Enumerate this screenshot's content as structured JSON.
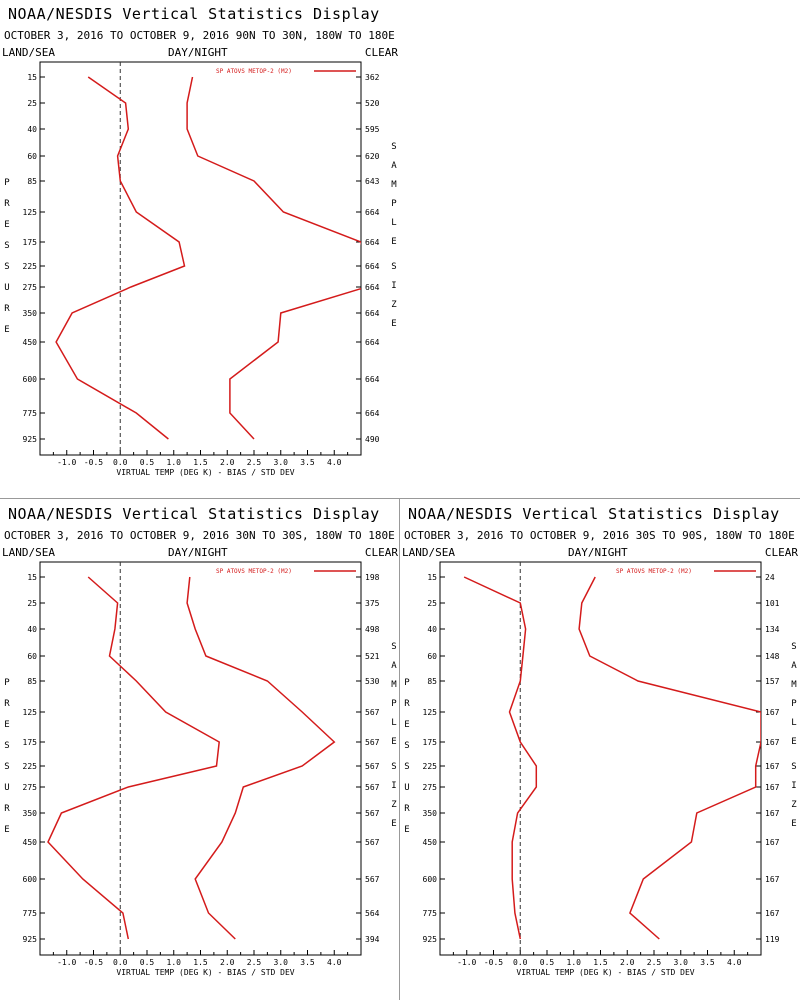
{
  "chart_data": [
    {
      "type": "line",
      "title": "NOAA/NESDIS Vertical Statistics Display",
      "subtitle": "OCTOBER 3, 2016 TO OCTOBER 9, 2016 90N TO 30N, 180W TO 180E",
      "left_label": "LAND/SEA",
      "center_label": "DAY/NIGHT",
      "right_label": "CLEAR",
      "xlabel": "VIRTUAL TEMP (DEG K) - BIAS / STD DEV",
      "ylabel": "PRESSURE",
      "y2label": "SAMPLE SIZE",
      "xlim": [
        -1.5,
        4.5
      ],
      "x_ticks": [
        "-1.0",
        "-0.5",
        "0.0",
        "0.5",
        "1.0",
        "1.5",
        "2.0",
        "2.5",
        "3.0",
        "3.5",
        "4.0"
      ],
      "pressure_levels": [
        "15",
        "25",
        "40",
        "60",
        "85",
        "125",
        "175",
        "225",
        "275",
        "350",
        "450",
        "600",
        "775",
        "925"
      ],
      "sample_size": [
        "362",
        "520",
        "595",
        "620",
        "643",
        "664",
        "664",
        "664",
        "664",
        "664",
        "664",
        "664",
        "664",
        "490"
      ],
      "legend": "SP ATOVS METOP-2 (M2)",
      "series": [
        {
          "name": "BIAS",
          "values": [
            -0.6,
            0.1,
            0.15,
            -0.05,
            0.0,
            0.3,
            1.1,
            1.2,
            0.2,
            -0.9,
            -1.2,
            -0.8,
            0.3,
            0.9
          ]
        },
        {
          "name": "STD DEV",
          "values": [
            1.35,
            1.25,
            1.25,
            1.45,
            2.5,
            3.05,
            4.5,
            4.6,
            4.6,
            3.0,
            2.95,
            2.05,
            2.05,
            2.5
          ]
        }
      ]
    },
    {
      "type": "line",
      "title": "NOAA/NESDIS Vertical Statistics Display",
      "subtitle": "OCTOBER 3, 2016 TO OCTOBER 9, 2016 30N TO 30S, 180W TO 180E",
      "left_label": "LAND/SEA",
      "center_label": "DAY/NIGHT",
      "right_label": "CLEAR",
      "xlabel": "VIRTUAL TEMP (DEG K) - BIAS / STD DEV",
      "ylabel": "PRESSURE",
      "y2label": "SAMPLE SIZE",
      "xlim": [
        -1.5,
        4.5
      ],
      "x_ticks": [
        "-1.0",
        "-0.5",
        "0.0",
        "0.5",
        "1.0",
        "1.5",
        "2.0",
        "2.5",
        "3.0",
        "3.5",
        "4.0"
      ],
      "pressure_levels": [
        "15",
        "25",
        "40",
        "60",
        "85",
        "125",
        "175",
        "225",
        "275",
        "350",
        "450",
        "600",
        "775",
        "925"
      ],
      "sample_size": [
        "198",
        "375",
        "498",
        "521",
        "530",
        "567",
        "567",
        "567",
        "567",
        "567",
        "567",
        "567",
        "564",
        "394"
      ],
      "legend": "SP ATOVS METOP-2 (M2)",
      "series": [
        {
          "name": "BIAS",
          "values": [
            -0.6,
            -0.05,
            -0.1,
            -0.2,
            0.3,
            0.85,
            1.85,
            1.8,
            0.15,
            -1.1,
            -1.35,
            -0.7,
            0.05,
            0.15
          ]
        },
        {
          "name": "STD DEV",
          "values": [
            1.3,
            1.25,
            1.4,
            1.6,
            2.75,
            3.4,
            4.0,
            3.4,
            2.3,
            2.15,
            1.9,
            1.4,
            1.65,
            2.15
          ]
        }
      ]
    },
    {
      "type": "line",
      "title": "NOAA/NESDIS Vertical Statistics Display",
      "subtitle": "OCTOBER 3, 2016 TO OCTOBER 9, 2016 30S TO 90S, 180W TO 180E",
      "left_label": "LAND/SEA",
      "center_label": "DAY/NIGHT",
      "right_label": "CLEAR",
      "xlabel": "VIRTUAL TEMP (DEG K) - BIAS / STD DEV",
      "ylabel": "PRESSURE",
      "y2label": "SAMPLE SIZE",
      "xlim": [
        -1.5,
        4.5
      ],
      "x_ticks": [
        "-1.0",
        "-0.5",
        "0.0",
        "0.5",
        "1.0",
        "1.5",
        "2.0",
        "2.5",
        "3.0",
        "3.5",
        "4.0"
      ],
      "pressure_levels": [
        "15",
        "25",
        "40",
        "60",
        "85",
        "125",
        "175",
        "225",
        "275",
        "350",
        "450",
        "600",
        "775",
        "925"
      ],
      "sample_size": [
        "24",
        "101",
        "134",
        "148",
        "157",
        "167",
        "167",
        "167",
        "167",
        "167",
        "167",
        "167",
        "167",
        "119"
      ],
      "legend": "SP ATOVS METOP-2 (M2)",
      "series": [
        {
          "name": "BIAS",
          "values": [
            -1.05,
            0.0,
            0.1,
            0.05,
            0.0,
            -0.2,
            0.0,
            0.3,
            0.3,
            -0.05,
            -0.15,
            -0.15,
            -0.1,
            0.0
          ]
        },
        {
          "name": "STD DEV",
          "values": [
            1.4,
            1.15,
            1.1,
            1.3,
            2.2,
            4.5,
            4.5,
            4.4,
            4.4,
            3.3,
            3.2,
            2.3,
            2.05,
            2.6
          ]
        }
      ]
    }
  ]
}
